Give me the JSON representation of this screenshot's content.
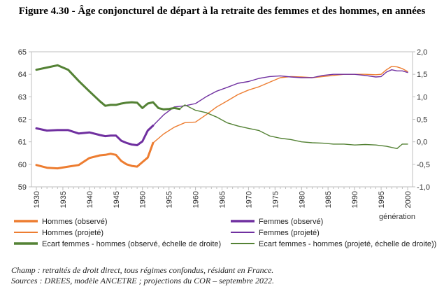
{
  "title": "Figure 4.30 - Âge conjoncturel de départ à la retraite des femmes et des hommes, en années",
  "notes": {
    "champ": "Champ : retraités de droit direct, tous régimes confondus, résidant en France.",
    "sources": "Sources : DREES, modèle ANCETRE ; projections du COR – septembre 2022."
  },
  "colors": {
    "hommes": "#ED7D31",
    "femmes": "#7030A0",
    "ecart": "#548235"
  },
  "chart_data": {
    "type": "line",
    "xlabel": "génération",
    "x_ticks": [
      1930,
      1935,
      1940,
      1945,
      1950,
      1955,
      1960,
      1965,
      1970,
      1975,
      1980,
      1985,
      1990,
      1995,
      2000
    ],
    "xlim": [
      1930,
      2000
    ],
    "left_axis": {
      "ylim": [
        59,
        65
      ],
      "ticks": [
        "59",
        "60",
        "61",
        "62",
        "63",
        "64",
        "65"
      ]
    },
    "right_axis": {
      "ylim": [
        -1.0,
        2.0
      ],
      "ticks": [
        "-1,0",
        "-0,5",
        "0,0",
        "0,5",
        "1,0",
        "1,5",
        "2,0"
      ]
    },
    "series": [
      {
        "name": "Hommes (observé)",
        "axis": "left",
        "color": "#ED7D31",
        "width": 3,
        "x": [
          1930,
          1932,
          1934,
          1936,
          1938,
          1940,
          1942,
          1943,
          1944,
          1945,
          1946,
          1947,
          1948,
          1949,
          1950,
          1951,
          1952
        ],
        "y": [
          59.97,
          59.85,
          59.82,
          59.9,
          59.97,
          60.28,
          60.4,
          60.42,
          60.47,
          60.42,
          60.15,
          60.0,
          59.93,
          59.9,
          60.1,
          60.3,
          60.95
        ]
      },
      {
        "name": "Hommes (projeté)",
        "axis": "left",
        "color": "#ED7D31",
        "width": 1.4,
        "x": [
          1952,
          1954,
          1956,
          1958,
          1960,
          1962,
          1964,
          1966,
          1968,
          1970,
          1972,
          1974,
          1976,
          1978,
          1980,
          1982,
          1984,
          1986,
          1988,
          1990,
          1992,
          1994,
          1995,
          1996,
          1997,
          1998,
          1999,
          2000
        ],
        "y": [
          60.95,
          61.35,
          61.65,
          61.85,
          61.88,
          62.2,
          62.55,
          62.82,
          63.1,
          63.3,
          63.45,
          63.65,
          63.85,
          63.9,
          63.88,
          63.85,
          63.9,
          63.95,
          64.0,
          64.0,
          64.0,
          63.98,
          64.0,
          64.2,
          64.35,
          64.33,
          64.25,
          64.12
        ]
      },
      {
        "name": "Femmes (observé)",
        "axis": "left",
        "color": "#7030A0",
        "width": 3,
        "x": [
          1930,
          1932,
          1934,
          1936,
          1938,
          1940,
          1942,
          1943,
          1944,
          1945,
          1946,
          1947,
          1948,
          1949,
          1950,
          1951,
          1952
        ],
        "y": [
          61.6,
          61.5,
          61.52,
          61.52,
          61.37,
          61.42,
          61.3,
          61.25,
          61.28,
          61.28,
          61.05,
          60.95,
          60.88,
          60.85,
          61.02,
          61.5,
          61.72
        ]
      },
      {
        "name": "Femmes (projeté)",
        "axis": "left",
        "color": "#7030A0",
        "width": 1.4,
        "x": [
          1952,
          1954,
          1956,
          1958,
          1960,
          1962,
          1964,
          1966,
          1968,
          1970,
          1972,
          1974,
          1976,
          1978,
          1980,
          1982,
          1984,
          1986,
          1988,
          1990,
          1992,
          1994,
          1995,
          1996,
          1997,
          1998,
          1999,
          2000
        ],
        "y": [
          61.72,
          62.2,
          62.55,
          62.6,
          62.7,
          63.0,
          63.25,
          63.42,
          63.6,
          63.68,
          63.82,
          63.9,
          63.93,
          63.88,
          63.85,
          63.85,
          63.95,
          64.0,
          64.0,
          64.0,
          63.95,
          63.88,
          63.9,
          64.1,
          64.2,
          64.15,
          64.15,
          64.08
        ]
      },
      {
        "name": "Ecart femmes - hommes (observé, échelle de droite)",
        "axis": "right",
        "color": "#548235",
        "width": 3,
        "x": [
          1930,
          1932,
          1934,
          1935,
          1936,
          1938,
          1940,
          1942,
          1943,
          1944,
          1945,
          1946,
          1947,
          1948,
          1949,
          1950,
          1951,
          1952,
          1953,
          1954,
          1955,
          1956,
          1957
        ],
        "y": [
          1.6,
          1.65,
          1.7,
          1.65,
          1.6,
          1.35,
          1.12,
          0.9,
          0.8,
          0.82,
          0.82,
          0.85,
          0.87,
          0.88,
          0.87,
          0.75,
          0.85,
          0.88,
          0.75,
          0.72,
          0.73,
          0.75,
          0.73
        ]
      },
      {
        "name": "Ecart femmes - hommes (projeté, échelle de droite))",
        "axis": "right",
        "color": "#548235",
        "width": 1.4,
        "x": [
          1957,
          1958,
          1960,
          1962,
          1964,
          1966,
          1968,
          1970,
          1972,
          1974,
          1976,
          1978,
          1980,
          1982,
          1984,
          1986,
          1988,
          1990,
          1992,
          1994,
          1996,
          1998,
          1999,
          2000
        ],
        "y": [
          0.73,
          0.82,
          0.7,
          0.65,
          0.55,
          0.42,
          0.35,
          0.3,
          0.25,
          0.13,
          0.08,
          0.05,
          0.0,
          -0.02,
          -0.03,
          -0.05,
          -0.05,
          -0.07,
          -0.06,
          -0.07,
          -0.1,
          -0.15,
          -0.05,
          -0.05
        ]
      }
    ],
    "legend": {
      "placement": "bottom",
      "items": [
        {
          "label": "Hommes (observé)",
          "color": "#ED7D31",
          "width": 3
        },
        {
          "label": "Femmes (observé)",
          "color": "#7030A0",
          "width": 3
        },
        {
          "label": "Hommes (projeté)",
          "color": "#ED7D31",
          "width": 1.4
        },
        {
          "label": "Femmes (projeté)",
          "color": "#7030A0",
          "width": 1.4
        },
        {
          "label": "Ecart femmes - hommes (observé, échelle de droite)",
          "color": "#548235",
          "width": 3
        },
        {
          "label": "Ecart femmes - hommes (projeté, échelle de droite))",
          "color": "#548235",
          "width": 1.4
        }
      ]
    }
  }
}
